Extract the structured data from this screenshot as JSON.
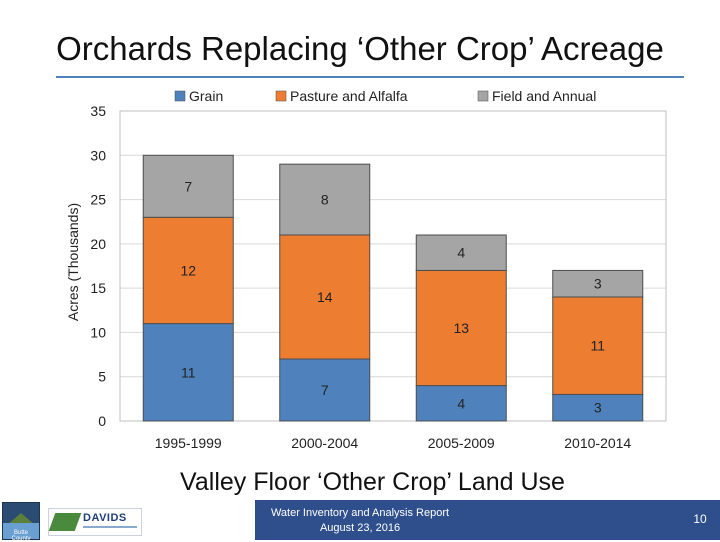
{
  "slide": {
    "title": "Orchards Replacing ‘Other Crop’ Acreage",
    "subtitle": "Valley Floor ‘Other Crop’ Land Use",
    "footer_line1": "Water Inventory and Analysis Report",
    "footer_line2": "August 23, 2016",
    "page_number": "10",
    "logo_county_text": "Butte County",
    "logo_company_text": "DAVIDS"
  },
  "chart_data": {
    "type": "bar",
    "stacked": true,
    "title": "",
    "xlabel": "",
    "ylabel": "Acres (Thousands)",
    "ylim": [
      0,
      35
    ],
    "yticks": [
      0,
      5,
      10,
      15,
      20,
      25,
      30,
      35
    ],
    "grid": true,
    "legend_position": "top",
    "categories": [
      "1995-1999",
      "2000-2004",
      "2005-2009",
      "2010-2014"
    ],
    "series": [
      {
        "name": "Grain",
        "color": "#4f81bd",
        "values": [
          11,
          7,
          4,
          3
        ],
        "labels": [
          "11",
          "7",
          "4",
          "3"
        ]
      },
      {
        "name": "Pasture and Alfalfa",
        "color": "#ed7d31",
        "values": [
          12,
          14,
          13,
          11
        ],
        "labels": [
          "12",
          "14",
          "13",
          "11"
        ]
      },
      {
        "name": "Field and Annual",
        "color": "#a5a5a5",
        "values": [
          7,
          8,
          4,
          3
        ],
        "labels": [
          "7",
          "8",
          "4",
          "3"
        ]
      }
    ]
  }
}
